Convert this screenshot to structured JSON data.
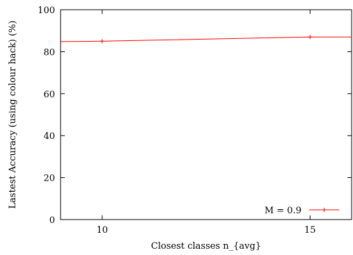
{
  "chart_data": {
    "type": "line",
    "title": "",
    "xlabel": "Closest classes n_{avg}",
    "ylabel": "Lastest Accuracy (using colour hack) (%)",
    "xlim": [
      9,
      16
    ],
    "ylim": [
      0,
      100
    ],
    "xticks": [
      10,
      15
    ],
    "yticks": [
      0,
      20,
      40,
      60,
      80,
      100
    ],
    "grid": false,
    "legend_position": "bottom-right",
    "series": [
      {
        "name": "M = 0.9",
        "color": "#ff0000",
        "marker": "plus",
        "x": [
          9,
          10,
          15,
          16
        ],
        "y": [
          84.8,
          85.0,
          87.0,
          87.0
        ],
        "marked_x": [
          10,
          15
        ]
      }
    ]
  }
}
